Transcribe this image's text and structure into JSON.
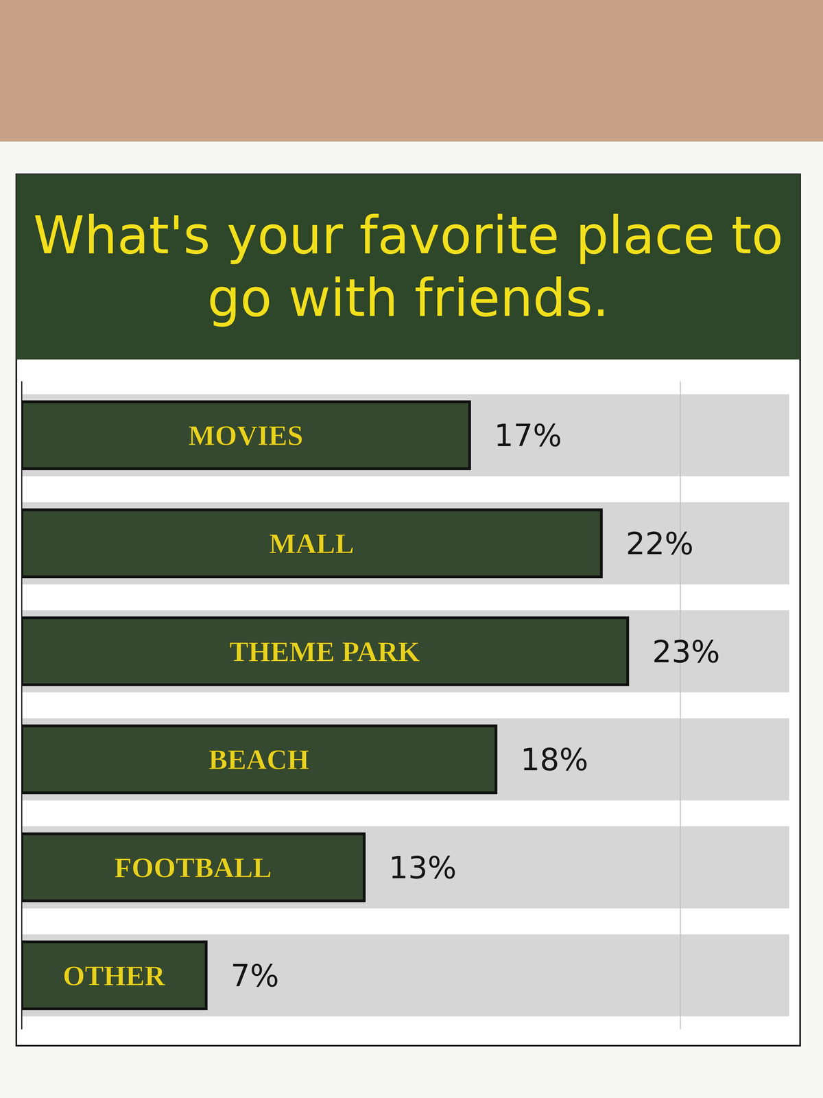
{
  "chart_data": {
    "type": "bar",
    "orientation": "horizontal",
    "title": "What's your favorite place to go with friends.",
    "categories": [
      "MOVIES",
      "MALL",
      "THEME PARK",
      "BEACH",
      "FOOTBALL",
      "OTHER"
    ],
    "values": [
      17,
      22,
      23,
      18,
      13,
      7
    ],
    "value_labels": [
      "17%",
      "22%",
      "23%",
      "18%",
      "13%",
      "7%"
    ],
    "data_labels": true,
    "color": "#34492f",
    "xlim": [
      0,
      25
    ],
    "tick_labels": false
  }
}
